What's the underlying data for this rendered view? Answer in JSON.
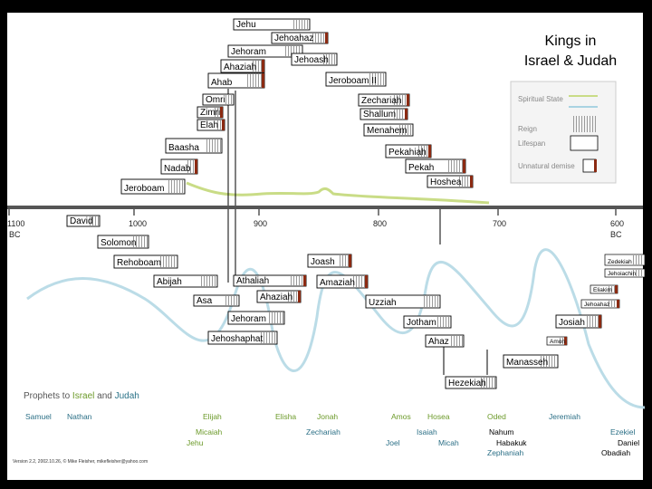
{
  "title": [
    "Kings in",
    "Israel & Judah"
  ],
  "legend": {
    "spiritual_state": "Spiritual State",
    "reign": "Reign",
    "lifespan": "Lifespan",
    "unnatural_demise": "Unnatural demise"
  },
  "timeline": {
    "ticks": [
      {
        "label": "1100",
        "sub": "BC"
      },
      {
        "label": "1000",
        "sub": ""
      },
      {
        "label": "900",
        "sub": ""
      },
      {
        "label": "800",
        "sub": ""
      },
      {
        "label": "700",
        "sub": ""
      },
      {
        "label": "600",
        "sub": "BC"
      }
    ]
  },
  "kings": [
    {
      "name": "Jehu"
    },
    {
      "name": "Jehoahaz"
    },
    {
      "name": "Jehoram"
    },
    {
      "name": "Jehoash"
    },
    {
      "name": "Ahaziah"
    },
    {
      "name": "Ahab"
    },
    {
      "name": "Jeroboam II"
    },
    {
      "name": "Omri"
    },
    {
      "name": "Zimri"
    },
    {
      "name": "Elah"
    },
    {
      "name": "Zechariah"
    },
    {
      "name": "Shallum"
    },
    {
      "name": "Menahem"
    },
    {
      "name": "Baasha"
    },
    {
      "name": "Pekahiah"
    },
    {
      "name": "Nadab"
    },
    {
      "name": "Pekah"
    },
    {
      "name": "Jeroboam"
    },
    {
      "name": "Hoshea"
    },
    {
      "name": "David"
    },
    {
      "name": "Solomon"
    },
    {
      "name": "Rehoboam"
    },
    {
      "name": "Joash"
    },
    {
      "name": "Abijah"
    },
    {
      "name": "Athaliah"
    },
    {
      "name": "Amaziah"
    },
    {
      "name": "Asa"
    },
    {
      "name": "Ahaziah"
    },
    {
      "name": "Uzziah"
    },
    {
      "name": "Jehoram"
    },
    {
      "name": "Jotham"
    },
    {
      "name": "Jehoshaphat"
    },
    {
      "name": "Ahaz"
    },
    {
      "name": "Hezekiah"
    },
    {
      "name": "Manasseh"
    },
    {
      "name": "Josiah"
    },
    {
      "name": "Amon"
    },
    {
      "name": "Zedekiah"
    },
    {
      "name": "Jehoiachin"
    },
    {
      "name": "Eliakim"
    },
    {
      "name": "Jehoahaz"
    }
  ],
  "prophets": {
    "heading": {
      "prefix": "Prophets to ",
      "israel": "Israel",
      "and": " and ",
      "judah": "Judah"
    },
    "names": [
      "Samuel",
      "Nathan",
      "Elijah",
      "Micaiah",
      "Jehu",
      "Elisha",
      "Jonah",
      "Zechariah",
      "Amos",
      "Hosea",
      "Isaiah",
      "Joel",
      "Micah",
      "Oded",
      "Nahum",
      "Habakuk",
      "Zephaniah",
      "Jeremiah",
      "Ezekiel",
      "Daniel",
      "Obadiah"
    ]
  },
  "credit": "Version 2.2, 2002.10.26, © Mike Fleisher, mikefleisher@yahoo.com",
  "colors": {
    "spiritual": "#c9dc86",
    "state": "#a9d3e2",
    "reign_stripe": "#999999",
    "demise": "#8b2a12",
    "israel": "#6c9a2a",
    "judah": "#2b7388",
    "prophet_other": "#2b6f86",
    "prophet_plain": "#000000"
  }
}
